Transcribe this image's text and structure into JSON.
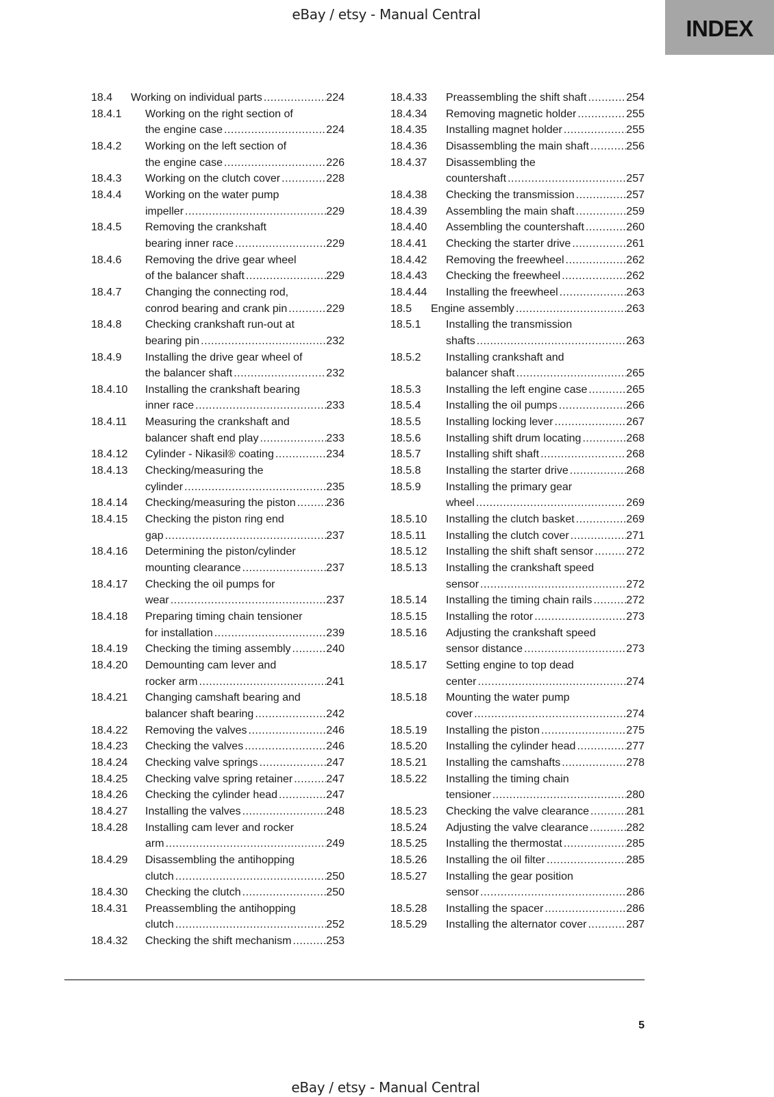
{
  "watermark_top": "eBay / etsy - Manual Central",
  "watermark_bottom": "eBay / etsy - Manual Central",
  "index_tab": "INDEX",
  "page_number": "5",
  "columns": [
    {
      "entries": [
        {
          "num": "18.4",
          "level": 1,
          "lines": [
            "Working on individual parts"
          ],
          "page": "224"
        },
        {
          "num": "18.4.1",
          "level": 2,
          "lines": [
            "Working on the right section of",
            "the engine case"
          ],
          "page": "224"
        },
        {
          "num": "18.4.2",
          "level": 2,
          "lines": [
            "Working on the left section of",
            "the engine case"
          ],
          "page": "226"
        },
        {
          "num": "18.4.3",
          "level": 2,
          "lines": [
            "Working on the clutch cover"
          ],
          "page": "228"
        },
        {
          "num": "18.4.4",
          "level": 2,
          "lines": [
            "Working on the water pump",
            "impeller"
          ],
          "page": "229"
        },
        {
          "num": "18.4.5",
          "level": 2,
          "lines": [
            "Removing the crankshaft",
            "bearing inner race"
          ],
          "page": "229"
        },
        {
          "num": "18.4.6",
          "level": 2,
          "lines": [
            "Removing the drive gear wheel",
            "of the balancer shaft"
          ],
          "page": "229"
        },
        {
          "num": "18.4.7",
          "level": 2,
          "lines": [
            "Changing the connecting rod,",
            "conrod bearing and crank pin"
          ],
          "page": "229"
        },
        {
          "num": "18.4.8",
          "level": 2,
          "lines": [
            "Checking crankshaft run-out at",
            "bearing pin"
          ],
          "page": "232"
        },
        {
          "num": "18.4.9",
          "level": 2,
          "lines": [
            "Installing the drive gear wheel of",
            "the balancer shaft"
          ],
          "page": "232"
        },
        {
          "num": "18.4.10",
          "level": 2,
          "lines": [
            "Installing the crankshaft bearing",
            "inner race"
          ],
          "page": "233"
        },
        {
          "num": "18.4.11",
          "level": 2,
          "lines": [
            "Measuring the crankshaft and",
            "balancer shaft end play"
          ],
          "page": "233"
        },
        {
          "num": "18.4.12",
          "level": 2,
          "lines": [
            "Cylinder - Nikasil® coating"
          ],
          "page": "234"
        },
        {
          "num": "18.4.13",
          "level": 2,
          "lines": [
            "Checking/measuring the",
            "cylinder"
          ],
          "page": "235"
        },
        {
          "num": "18.4.14",
          "level": 2,
          "lines": [
            "Checking/measuring the piston"
          ],
          "page": "236"
        },
        {
          "num": "18.4.15",
          "level": 2,
          "lines": [
            "Checking the piston ring end",
            "gap"
          ],
          "page": "237"
        },
        {
          "num": "18.4.16",
          "level": 2,
          "lines": [
            "Determining the piston/cylinder",
            "mounting clearance"
          ],
          "page": "237"
        },
        {
          "num": "18.4.17",
          "level": 2,
          "lines": [
            "Checking the oil pumps for",
            "wear"
          ],
          "page": "237"
        },
        {
          "num": "18.4.18",
          "level": 2,
          "lines": [
            "Preparing timing chain tensioner",
            "for installation"
          ],
          "page": "239"
        },
        {
          "num": "18.4.19",
          "level": 2,
          "lines": [
            "Checking the timing assembly"
          ],
          "page": "240"
        },
        {
          "num": "18.4.20",
          "level": 2,
          "lines": [
            "Demounting cam lever and",
            "rocker arm"
          ],
          "page": "241"
        },
        {
          "num": "18.4.21",
          "level": 2,
          "lines": [
            "Changing camshaft bearing and",
            "balancer shaft bearing"
          ],
          "page": "242"
        },
        {
          "num": "18.4.22",
          "level": 2,
          "lines": [
            "Removing the valves"
          ],
          "page": "246"
        },
        {
          "num": "18.4.23",
          "level": 2,
          "lines": [
            "Checking the valves"
          ],
          "page": "246"
        },
        {
          "num": "18.4.24",
          "level": 2,
          "lines": [
            "Checking valve springs"
          ],
          "page": "247"
        },
        {
          "num": "18.4.25",
          "level": 2,
          "lines": [
            "Checking valve spring retainer"
          ],
          "page": "247"
        },
        {
          "num": "18.4.26",
          "level": 2,
          "lines": [
            "Checking the cylinder head"
          ],
          "page": "247"
        },
        {
          "num": "18.4.27",
          "level": 2,
          "lines": [
            "Installing the valves"
          ],
          "page": "248"
        },
        {
          "num": "18.4.28",
          "level": 2,
          "lines": [
            "Installing cam lever and rocker",
            "arm"
          ],
          "page": "249"
        },
        {
          "num": "18.4.29",
          "level": 2,
          "lines": [
            "Disassembling the antihopping",
            "clutch"
          ],
          "page": "250"
        },
        {
          "num": "18.4.30",
          "level": 2,
          "lines": [
            "Checking the clutch"
          ],
          "page": "250"
        },
        {
          "num": "18.4.31",
          "level": 2,
          "lines": [
            "Preassembling the antihopping",
            "clutch"
          ],
          "page": "252"
        },
        {
          "num": "18.4.32",
          "level": 2,
          "lines": [
            "Checking the shift mechanism"
          ],
          "page": "253"
        }
      ]
    },
    {
      "entries": [
        {
          "num": "18.4.33",
          "level": 2,
          "lines": [
            "Preassembling the shift shaft"
          ],
          "page": "254"
        },
        {
          "num": "18.4.34",
          "level": 2,
          "lines": [
            "Removing magnetic holder"
          ],
          "page": "255"
        },
        {
          "num": "18.4.35",
          "level": 2,
          "lines": [
            "Installing magnet holder"
          ],
          "page": "255"
        },
        {
          "num": "18.4.36",
          "level": 2,
          "lines": [
            "Disassembling the main shaft"
          ],
          "page": "256"
        },
        {
          "num": "18.4.37",
          "level": 2,
          "lines": [
            "Disassembling the",
            "countershaft"
          ],
          "page": "257"
        },
        {
          "num": "18.4.38",
          "level": 2,
          "lines": [
            "Checking the transmission"
          ],
          "page": "257"
        },
        {
          "num": "18.4.39",
          "level": 2,
          "lines": [
            "Assembling the main shaft"
          ],
          "page": "259"
        },
        {
          "num": "18.4.40",
          "level": 2,
          "lines": [
            "Assembling the countershaft"
          ],
          "page": "260"
        },
        {
          "num": "18.4.41",
          "level": 2,
          "lines": [
            "Checking the starter drive"
          ],
          "page": "261"
        },
        {
          "num": "18.4.42",
          "level": 2,
          "lines": [
            "Removing the freewheel"
          ],
          "page": "262"
        },
        {
          "num": "18.4.43",
          "level": 2,
          "lines": [
            "Checking the freewheel"
          ],
          "page": "262"
        },
        {
          "num": "18.4.44",
          "level": 2,
          "lines": [
            "Installing the freewheel"
          ],
          "page": "263"
        },
        {
          "num": "18.5",
          "level": 1,
          "lines": [
            "Engine assembly"
          ],
          "page": "263"
        },
        {
          "num": "18.5.1",
          "level": 2,
          "lines": [
            "Installing the transmission",
            "shafts"
          ],
          "page": "263"
        },
        {
          "num": "18.5.2",
          "level": 2,
          "lines": [
            "Installing crankshaft and",
            "balancer shaft"
          ],
          "page": "265"
        },
        {
          "num": "18.5.3",
          "level": 2,
          "lines": [
            "Installing the left engine case"
          ],
          "page": "265"
        },
        {
          "num": "18.5.4",
          "level": 2,
          "lines": [
            "Installing the oil pumps"
          ],
          "page": "266"
        },
        {
          "num": "18.5.5",
          "level": 2,
          "lines": [
            "Installing locking lever"
          ],
          "page": "267"
        },
        {
          "num": "18.5.6",
          "level": 2,
          "lines": [
            "Installing shift drum locating"
          ],
          "page": "268"
        },
        {
          "num": "18.5.7",
          "level": 2,
          "lines": [
            "Installing shift shaft"
          ],
          "page": "268"
        },
        {
          "num": "18.5.8",
          "level": 2,
          "lines": [
            "Installing the starter drive"
          ],
          "page": "268"
        },
        {
          "num": "18.5.9",
          "level": 2,
          "lines": [
            "Installing the primary gear",
            "wheel"
          ],
          "page": "269"
        },
        {
          "num": "18.5.10",
          "level": 2,
          "lines": [
            "Installing the clutch basket"
          ],
          "page": "269"
        },
        {
          "num": "18.5.11",
          "level": 2,
          "lines": [
            "Installing the clutch cover"
          ],
          "page": "271"
        },
        {
          "num": "18.5.12",
          "level": 2,
          "lines": [
            "Installing the shift shaft sensor"
          ],
          "page": "272"
        },
        {
          "num": "18.5.13",
          "level": 2,
          "lines": [
            "Installing the crankshaft speed",
            "sensor"
          ],
          "page": "272"
        },
        {
          "num": "18.5.14",
          "level": 2,
          "lines": [
            "Installing the timing chain rails"
          ],
          "page": "272"
        },
        {
          "num": "18.5.15",
          "level": 2,
          "lines": [
            "Installing the rotor"
          ],
          "page": "273"
        },
        {
          "num": "18.5.16",
          "level": 2,
          "lines": [
            "Adjusting the crankshaft speed",
            "sensor distance"
          ],
          "page": "273"
        },
        {
          "num": "18.5.17",
          "level": 2,
          "lines": [
            "Setting engine to top dead",
            "center"
          ],
          "page": "274"
        },
        {
          "num": "18.5.18",
          "level": 2,
          "lines": [
            "Mounting the water pump",
            "cover"
          ],
          "page": "274"
        },
        {
          "num": "18.5.19",
          "level": 2,
          "lines": [
            "Installing the piston"
          ],
          "page": "275"
        },
        {
          "num": "18.5.20",
          "level": 2,
          "lines": [
            "Installing the cylinder head"
          ],
          "page": "277"
        },
        {
          "num": "18.5.21",
          "level": 2,
          "lines": [
            "Installing the camshafts"
          ],
          "page": "278"
        },
        {
          "num": "18.5.22",
          "level": 2,
          "lines": [
            "Installing the timing chain",
            "tensioner"
          ],
          "page": "280"
        },
        {
          "num": "18.5.23",
          "level": 2,
          "lines": [
            "Checking the valve clearance"
          ],
          "page": "281"
        },
        {
          "num": "18.5.24",
          "level": 2,
          "lines": [
            "Adjusting the valve clearance"
          ],
          "page": "282"
        },
        {
          "num": "18.5.25",
          "level": 2,
          "lines": [
            "Installing the thermostat"
          ],
          "page": "285"
        },
        {
          "num": "18.5.26",
          "level": 2,
          "lines": [
            "Installing the oil filter"
          ],
          "page": "285"
        },
        {
          "num": "18.5.27",
          "level": 2,
          "lines": [
            "Installing the gear position",
            "sensor"
          ],
          "page": "286"
        },
        {
          "num": "18.5.28",
          "level": 2,
          "lines": [
            "Installing the spacer"
          ],
          "page": "286"
        },
        {
          "num": "18.5.29",
          "level": 2,
          "lines": [
            "Installing the alternator cover"
          ],
          "page": "287"
        }
      ]
    }
  ]
}
